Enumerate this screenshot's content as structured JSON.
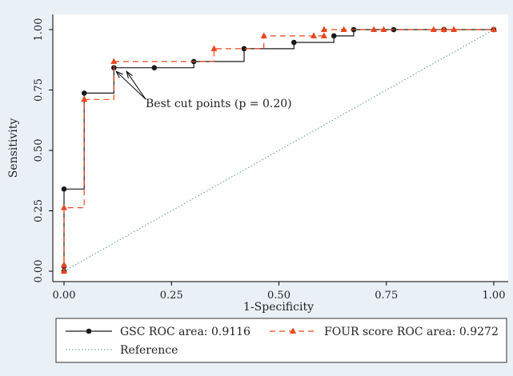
{
  "chart_data": {
    "type": "line",
    "xlabel": "1-Specificity",
    "ylabel": "Sensitivity",
    "xlim": [
      0,
      1
    ],
    "ylim": [
      0,
      1
    ],
    "x_ticks": [
      "0.00",
      "0.25",
      "0.50",
      "0.75",
      "1.00"
    ],
    "y_ticks": [
      "0.00",
      "0.25",
      "0.50",
      "0.75",
      "1.00"
    ],
    "grid": false,
    "legend_position": "bottom",
    "annotation": "Best cut points (p = 0.20)",
    "annotation_points": [
      [
        0.116,
        0.84
      ],
      [
        0.14,
        0.84
      ]
    ],
    "series": [
      {
        "name": "GSC ROC area: 0.9116",
        "color": "#1a1a1a",
        "line_style": "solid",
        "marker": "circle",
        "points": [
          [
            0,
            0
          ],
          [
            0,
            0.02
          ],
          [
            0,
            0.34
          ],
          [
            0.047,
            0.34
          ],
          [
            0.047,
            0.737
          ],
          [
            0.116,
            0.737
          ],
          [
            0.116,
            0.842
          ],
          [
            0.21,
            0.842
          ],
          [
            0.302,
            0.842
          ],
          [
            0.302,
            0.868
          ],
          [
            0.419,
            0.868
          ],
          [
            0.419,
            0.921
          ],
          [
            0.535,
            0.921
          ],
          [
            0.535,
            0.947
          ],
          [
            0.628,
            0.947
          ],
          [
            0.628,
            0.974
          ],
          [
            0.674,
            0.974
          ],
          [
            0.674,
            1.0
          ],
          [
            0.767,
            1.0
          ],
          [
            0.884,
            1.0
          ],
          [
            1.0,
            1.0
          ]
        ],
        "markers": [
          [
            0,
            0
          ],
          [
            0,
            0.02
          ],
          [
            0,
            0.34
          ],
          [
            0.047,
            0.737
          ],
          [
            0.116,
            0.842
          ],
          [
            0.21,
            0.842
          ],
          [
            0.302,
            0.868
          ],
          [
            0.419,
            0.921
          ],
          [
            0.535,
            0.947
          ],
          [
            0.628,
            0.974
          ],
          [
            0.674,
            1.0
          ],
          [
            0.767,
            1.0
          ],
          [
            0.884,
            1.0
          ],
          [
            1.0,
            1.0
          ]
        ]
      },
      {
        "name": "FOUR score ROC area: 0.9272",
        "color": "#e8461c",
        "line_style": "dashed",
        "marker": "triangle",
        "points": [
          [
            0,
            0
          ],
          [
            0,
            0.026
          ],
          [
            0,
            0.263
          ],
          [
            0.047,
            0.263
          ],
          [
            0.047,
            0.711
          ],
          [
            0.116,
            0.711
          ],
          [
            0.116,
            0.868
          ],
          [
            0.349,
            0.868
          ],
          [
            0.349,
            0.921
          ],
          [
            0.465,
            0.921
          ],
          [
            0.465,
            0.974
          ],
          [
            0.605,
            0.974
          ],
          [
            0.605,
            1.0
          ],
          [
            1.0,
            1.0
          ]
        ],
        "markers": [
          [
            0,
            0
          ],
          [
            0,
            0.026
          ],
          [
            0,
            0.263
          ],
          [
            0.047,
            0.711
          ],
          [
            0.116,
            0.868
          ],
          [
            0.349,
            0.921
          ],
          [
            0.465,
            0.974
          ],
          [
            0.581,
            0.974
          ],
          [
            0.605,
            0.974
          ],
          [
            0.605,
            1.0
          ],
          [
            0.651,
            1.0
          ],
          [
            0.721,
            1.0
          ],
          [
            0.744,
            1.0
          ],
          [
            0.86,
            1.0
          ],
          [
            0.884,
            1.0
          ],
          [
            0.907,
            1.0
          ],
          [
            1.0,
            1.0
          ]
        ]
      },
      {
        "name": "Reference",
        "color": "#4f9a8a",
        "line_style": "dotted",
        "marker": "none",
        "points": [
          [
            0,
            0
          ],
          [
            1,
            1
          ]
        ],
        "markers": []
      }
    ]
  }
}
